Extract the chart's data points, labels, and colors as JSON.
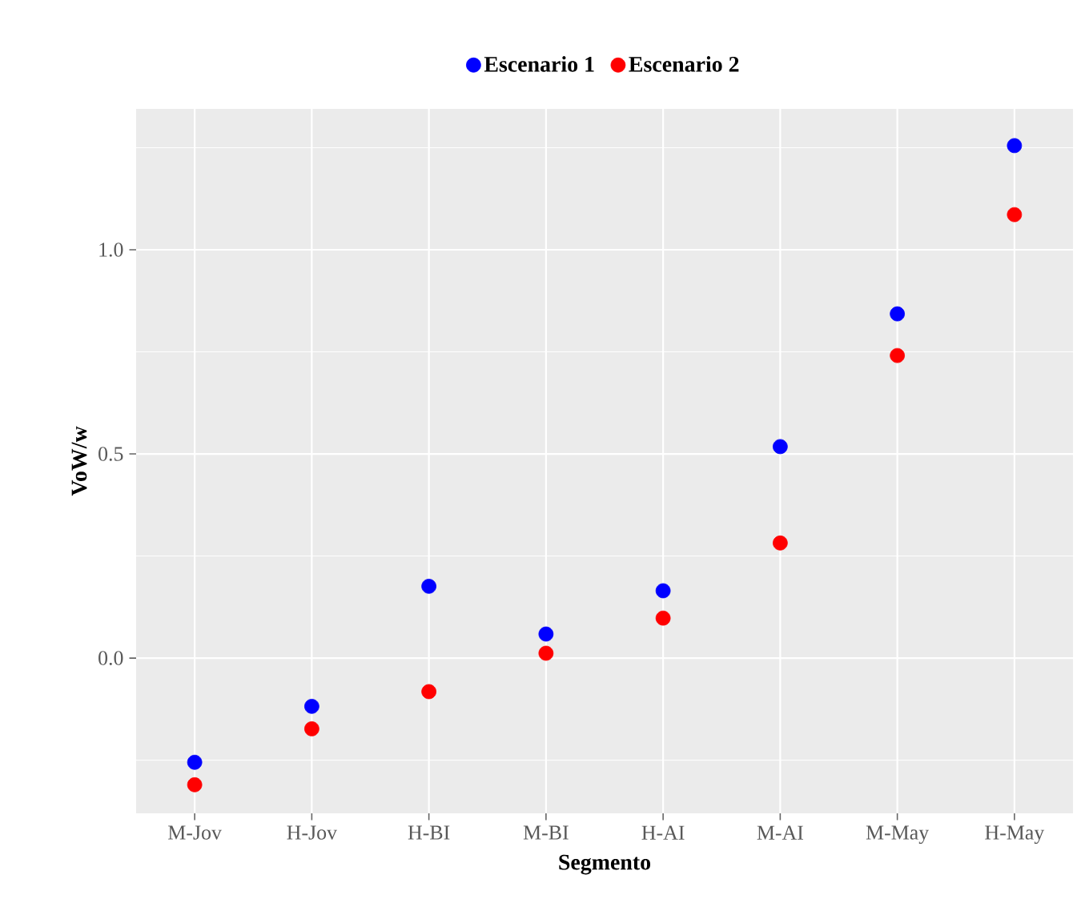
{
  "chart_data": {
    "type": "scatter",
    "xlabel": "Segmento",
    "ylabel": "VoW/w",
    "categories": [
      "M-Jov",
      "H-Jov",
      "H-BI",
      "M-BI",
      "H-AI",
      "M-AI",
      "M-May",
      "H-May"
    ],
    "series": [
      {
        "name": "Escenario 1",
        "color": "#0000ff",
        "values": [
          -0.255,
          -0.118,
          0.176,
          0.059,
          0.165,
          0.518,
          0.843,
          1.255
        ]
      },
      {
        "name": "Escenario 2",
        "color": "#ff0000",
        "values": [
          -0.31,
          -0.173,
          -0.082,
          0.012,
          0.098,
          0.282,
          0.741,
          1.086
        ]
      }
    ],
    "ylim": [
      -0.38,
      1.345
    ],
    "yticks": [
      {
        "value": -0.25,
        "label": null
      },
      {
        "value": 0,
        "label": "0.0"
      },
      {
        "value": 0.25,
        "label": null
      },
      {
        "value": 0.5,
        "label": "0.5"
      },
      {
        "value": 0.75,
        "label": null
      },
      {
        "value": 1,
        "label": "1.0"
      },
      {
        "value": 1.25,
        "label": null
      }
    ],
    "grid": true,
    "legend": "top",
    "marker": "circle"
  }
}
